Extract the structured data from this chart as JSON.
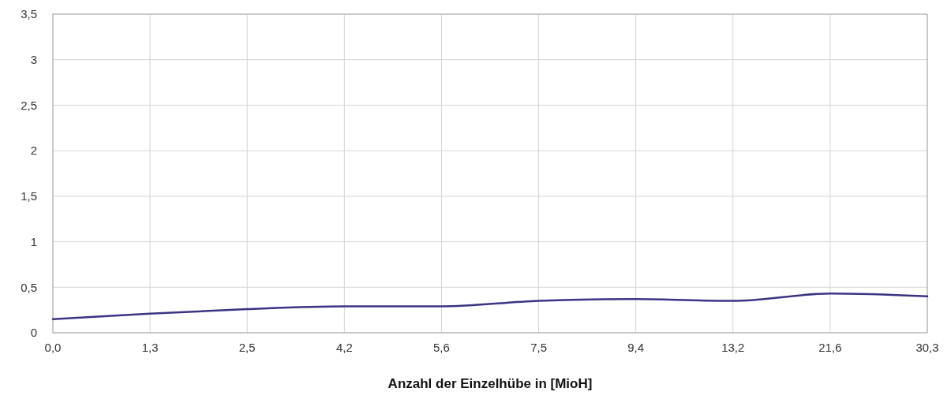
{
  "chart_data": {
    "type": "line",
    "xlabel": "Anzahl der Einzelhübe in [MioH]",
    "categories": [
      "0,0",
      "1,3",
      "2,5",
      "4,2",
      "5,6",
      "7,5",
      "9,4",
      "13,2",
      "21,6",
      "30,3"
    ],
    "series": [
      {
        "color": "#3b3485",
        "values": [
          0.15,
          0.21,
          0.26,
          0.29,
          0.29,
          0.35,
          0.37,
          0.35,
          0.43,
          0.4
        ]
      }
    ],
    "ylim": [
      0,
      3.5
    ],
    "yticks": [
      0,
      {
        "value": 0.5,
        "label": "0,5"
      },
      1,
      {
        "value": 1.5,
        "label": "1,5"
      },
      2,
      {
        "value": 2.5,
        "label": "2,5"
      },
      3,
      {
        "value": 3.5,
        "label": "3,5"
      }
    ],
    "grid": true
  }
}
